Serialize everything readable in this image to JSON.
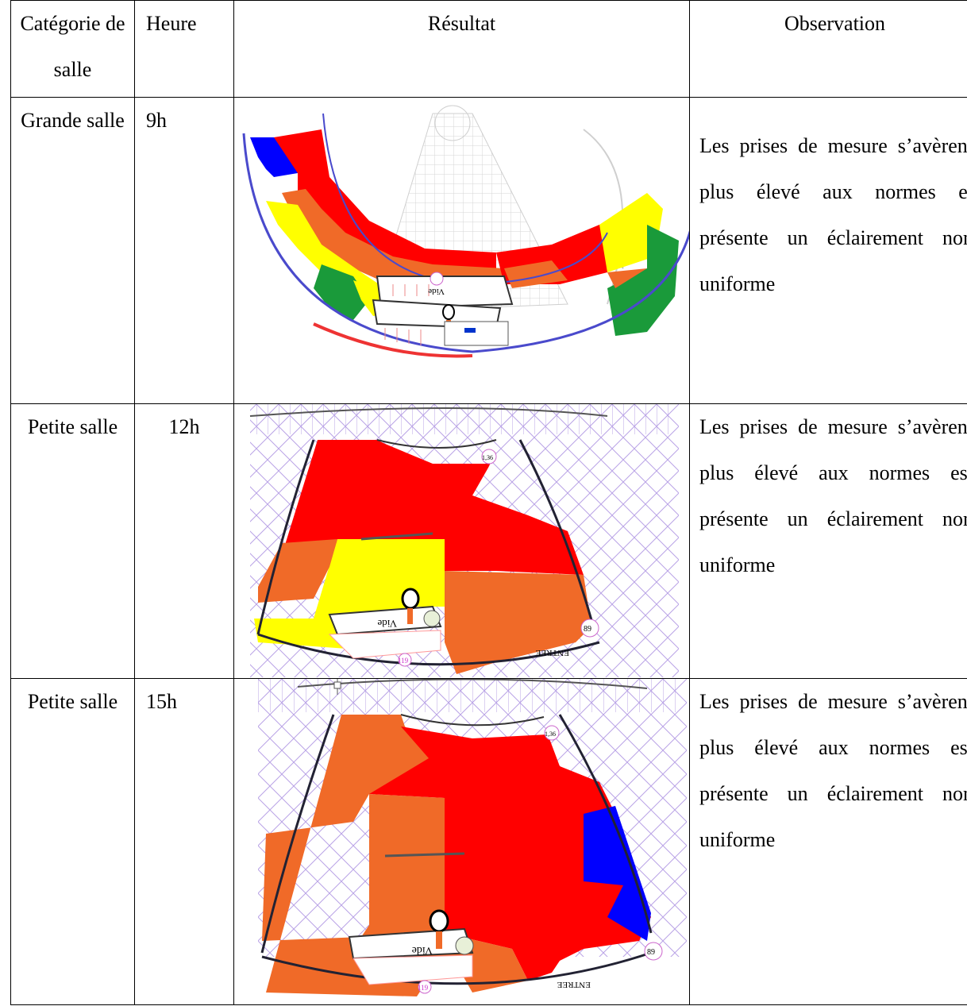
{
  "table": {
    "headers": {
      "category": "Catégorie de salle",
      "hour": "Heure",
      "result": "Résultat",
      "observation": "Observation"
    },
    "rows": [
      {
        "category": "Grande salle",
        "hour": "9h",
        "observation": "Les prises de mesure s’avèrent plus élevé aux normes et présente un éclairement non uniforme",
        "zone_colors": [
          "#0000ff",
          "#ff0000",
          "#f06a28",
          "#ffff00",
          "#1a9a3a"
        ]
      },
      {
        "category": "Petite salle",
        "hour": "12h",
        "observation": "Les prises de mesure s’avèrent plus élevé aux normes est présente un éclairement non uniforme",
        "zone_colors": [
          "#ff0000",
          "#f06a28",
          "#ffff00"
        ]
      },
      {
        "category": "Petite salle",
        "hour": "15h",
        "observation": "Les prises de mesure s’avèrent plus élevé aux normes est présente un éclairement non uniforme",
        "zone_colors": [
          "#ff0000",
          "#f06a28",
          "#0000ff"
        ]
      }
    ]
  },
  "plan_labels": {
    "vide": "Vide",
    "entree": "ENTREE",
    "num_a": "119",
    "num_b": "89",
    "num_c": "1,36"
  }
}
